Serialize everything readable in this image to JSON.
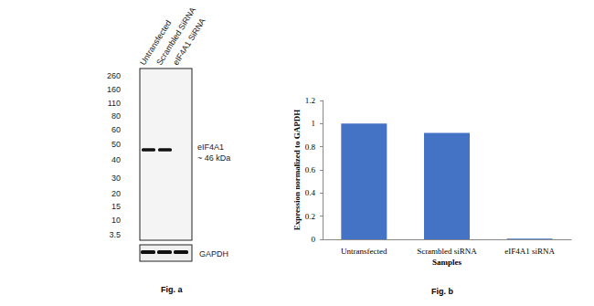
{
  "blot": {
    "caption": "Fig. a",
    "lanes": [
      "Untransfected",
      "Scrambled SiRNA",
      "eIF4A1 SiRNA"
    ],
    "markers_kda": [
      260,
      160,
      110,
      80,
      60,
      50,
      40,
      30,
      20,
      15,
      10,
      3.5
    ],
    "band": {
      "label": "eIF4A1",
      "size_label": "~ 46 kDa",
      "size_kda": 46,
      "present": [
        true,
        true,
        false
      ]
    },
    "loading_control": {
      "label": "GAPDH",
      "present": [
        true,
        true,
        true
      ]
    }
  },
  "chart_data": {
    "type": "bar",
    "caption": "Fig. b",
    "categories": [
      "Untransfected",
      "Scrambled siRNA",
      "eIF4A1 siRNA"
    ],
    "values": [
      1,
      0.92,
      0.005
    ],
    "color": "#4472c4",
    "x_label": "Samples",
    "y_label": "Expression normalized to GAPDH",
    "ylim": [
      0,
      1.2
    ],
    "yticks": [
      0,
      0.2,
      0.4,
      0.6,
      0.8,
      1,
      1.2
    ],
    "grid": false
  }
}
